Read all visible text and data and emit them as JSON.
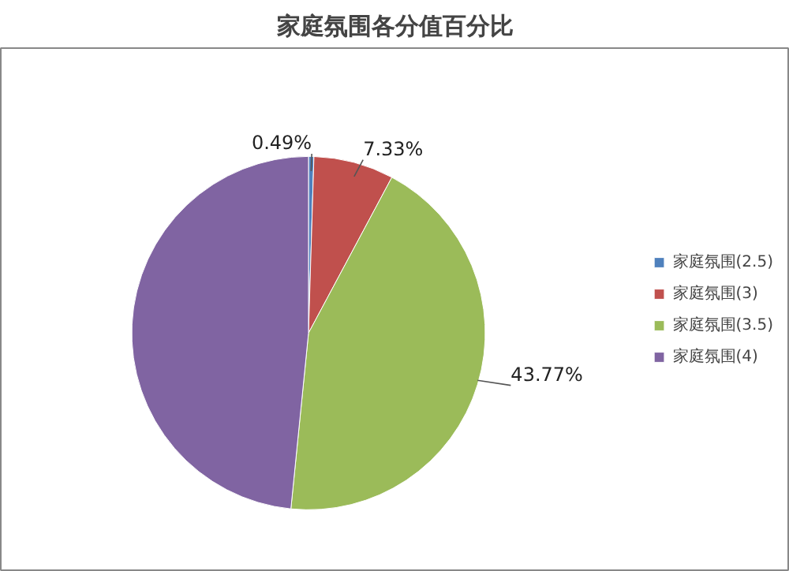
{
  "chart_data": {
    "type": "pie",
    "title": "家庭氛围各分值百分比",
    "categories": [
      "家庭氛围(2.5)",
      "家庭氛围(3)",
      "家庭氛围(3.5)",
      "家庭氛围(4)"
    ],
    "values": [
      0.49,
      7.33,
      43.77,
      48.41
    ],
    "colors": [
      "#4f81bd",
      "#c0504d",
      "#9bbb59",
      "#8064a2"
    ],
    "value_labels": [
      "0.49%",
      "7.33%",
      "43.77%",
      null
    ],
    "legend": "right"
  }
}
